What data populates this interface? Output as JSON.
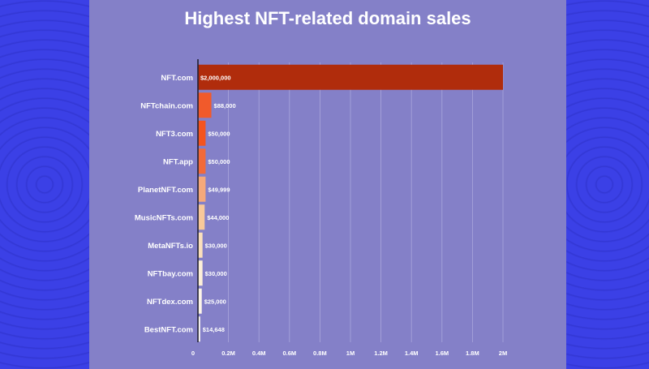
{
  "colors": {
    "background": "#3a3ee0",
    "panel": "#8480c8",
    "grid": "#a9a6dc",
    "axis": "#1f1f33",
    "text": "#ffffff"
  },
  "chart_data": {
    "type": "bar",
    "orientation": "horizontal",
    "title": "Highest NFT-related domain sales",
    "xlabel": "",
    "ylabel": "",
    "xlim": [
      0,
      2000000
    ],
    "grid": true,
    "categories": [
      "NFT.com",
      "NFTchain.com",
      "NFT3.com",
      "NFT.app",
      "PlanetNFT.com",
      "MusicNFTs.com",
      "MetaNFTs.io",
      "NFTbay.com",
      "NFTdex.com",
      "BestNFT.com"
    ],
    "values": [
      2000000,
      88000,
      50000,
      50000,
      49999,
      44000,
      30000,
      30000,
      25000,
      14648
    ],
    "value_labels": [
      "$2,000,000",
      "$88,000",
      "$50,000",
      "$50,000",
      "$49,999",
      "$44,000",
      "$30,000",
      "$30,000",
      "$25,000",
      "$14,648"
    ],
    "bar_colors": [
      "#b02c0c",
      "#f15a2b",
      "#f4541f",
      "#f26a3a",
      "#f5a97a",
      "#f8c99a",
      "#fbe0bc",
      "#fdf0d8",
      "#fdf5e8",
      "#fefaf4"
    ],
    "x_ticks": [
      0,
      200000,
      400000,
      600000,
      800000,
      1000000,
      1200000,
      1400000,
      1600000,
      1800000,
      2000000
    ],
    "x_tick_labels": [
      "0",
      "0.2M",
      "0.4M",
      "0.6M",
      "0.8M",
      "1M",
      "1.2M",
      "1.4M",
      "1.6M",
      "1.8M",
      "2M"
    ]
  }
}
